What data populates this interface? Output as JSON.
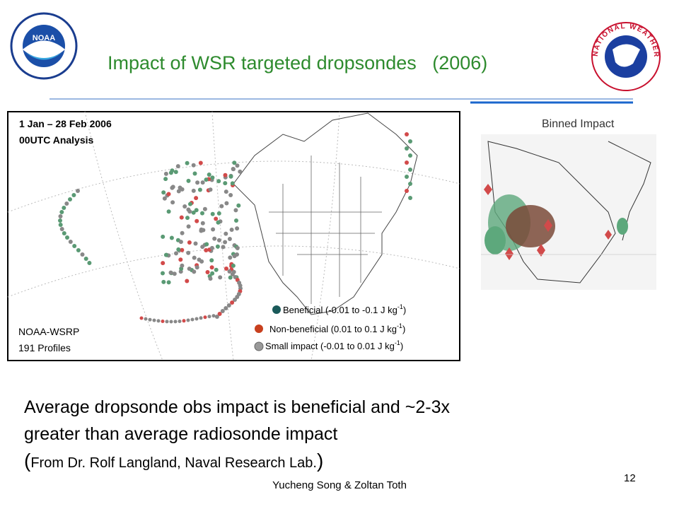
{
  "header": {
    "logo_left": "NOAA",
    "logo_right": "NATIONAL WEATHER SERVICE",
    "title": "Impact of WSR targeted dropsondes",
    "title_year": "(2006)"
  },
  "map": {
    "period": "1 Jan – 28 Feb 2006",
    "analysis": "00UTC Analysis",
    "program": "NOAA-WSRP",
    "profiles": "191 Profiles",
    "legend": [
      {
        "text": "Beneficial (-0.01 to -0.1 J kg",
        "sup": "-1",
        "end": ")"
      },
      {
        "text": "Non-beneficial (0.01 to 0.1 J kg",
        "sup": "-1",
        "end": ")"
      },
      {
        "text": "Small impact (-0.01 to 0.01 J kg",
        "sup": "-1",
        "end": ")"
      }
    ]
  },
  "binned": {
    "title": "Binned Impact"
  },
  "body": {
    "line1": "Average dropsonde obs impact is beneficial and ~2-3x",
    "line2": "greater than average radiosonde impact",
    "open": "(",
    "source": "From Dr. Rolf Langland, Naval Research Lab.",
    "close": ")"
  },
  "footer": {
    "authors": "Yucheng Song & Zoltan Toth",
    "page": "12"
  }
}
